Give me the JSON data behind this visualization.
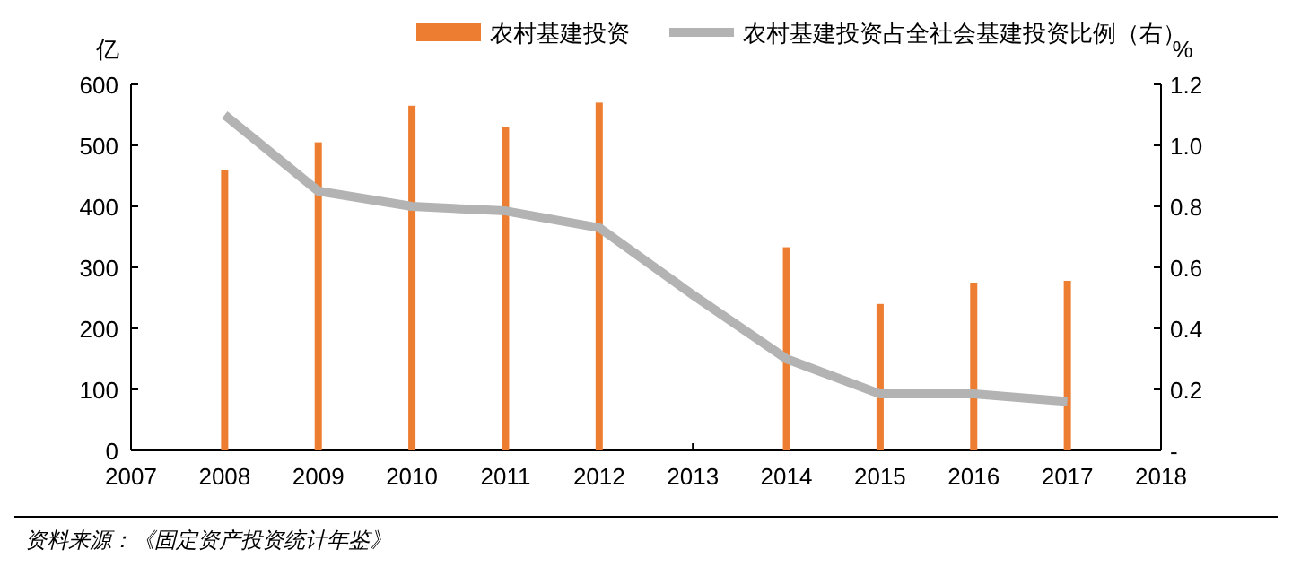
{
  "chart_data": {
    "type": "bar",
    "x": [
      2008,
      2009,
      2010,
      2011,
      2012,
      2013,
      2014,
      2015,
      2016,
      2017
    ],
    "series": [
      {
        "name": "农村基建投资",
        "color": "#ed7d31",
        "values": [
          460,
          505,
          565,
          530,
          570,
          null,
          333,
          240,
          275,
          278
        ]
      },
      {
        "name": "农村基建投资占全社会基建投资比例（右）",
        "type": "line",
        "axis": "y2",
        "color": "#b3b3b3",
        "values": [
          1.1,
          0.85,
          0.8,
          0.785,
          0.73,
          0.51,
          0.3,
          0.185,
          0.185,
          0.16
        ]
      }
    ],
    "xlim": [
      2007,
      2018
    ],
    "xticks": [
      2007,
      2008,
      2009,
      2010,
      2011,
      2012,
      2013,
      2014,
      2015,
      2016,
      2017,
      2018
    ],
    "ylim": [
      0,
      600
    ],
    "yticks": [
      0,
      100,
      200,
      300,
      400,
      500,
      600
    ],
    "y2lim": [
      0,
      1.2
    ],
    "y2ticks": [
      {
        "value": 0,
        "label": "-"
      },
      {
        "value": 0.2,
        "label": "0.2"
      },
      {
        "value": 0.4,
        "label": "0.4"
      },
      {
        "value": 0.6,
        "label": "0.6"
      },
      {
        "value": 0.8,
        "label": "0.8"
      },
      {
        "value": 1.0,
        "label": "1.0"
      },
      {
        "value": 1.2,
        "label": "1.2"
      }
    ],
    "ylabel": "亿",
    "y2label": "%",
    "legend": "top",
    "grid": false,
    "annotations": [
      "资料来源：《固定资产投资统计年鉴》"
    ]
  }
}
